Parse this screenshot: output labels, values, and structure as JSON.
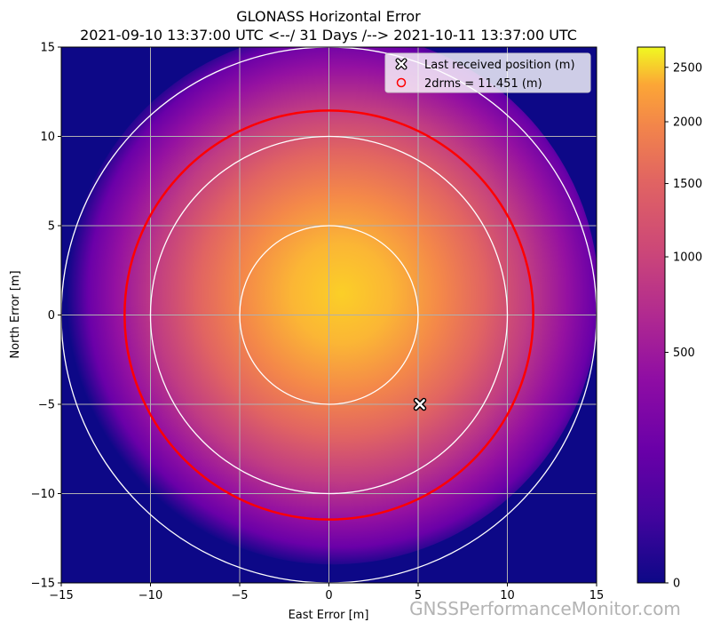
{
  "chart_data": {
    "type": "heatmap",
    "title": "GLONASS Horizontal Error",
    "subtitle": "2021-09-10 13:37:00 UTC  <--/ 31 Days /-->  2021-10-11 13:37:00 UTC",
    "xlabel": "East Error [m]",
    "ylabel": "North Error [m]",
    "xlim": [
      -15,
      15
    ],
    "ylim": [
      -15,
      15
    ],
    "x_ticks": [
      "−15",
      "−10",
      "−5",
      "0",
      "5",
      "10",
      "15"
    ],
    "y_ticks": [
      "−15",
      "−10",
      "−5",
      "0",
      "5",
      "10",
      "15"
    ],
    "grid": true,
    "density_peak": {
      "x": 0.7,
      "y": 1.2
    },
    "reference_circles_m": [
      5,
      10,
      15
    ],
    "drms_circle": {
      "radius": 11.451,
      "color": "#ff0000"
    },
    "last_position": {
      "x": 5.1,
      "y": -5.0
    },
    "legend": {
      "position": "top-right",
      "entries": [
        {
          "label": "Last received position (m)",
          "marker": "x-marker-icon"
        },
        {
          "label": "2drms = 11.451 (m)",
          "marker": "red-circle-icon"
        }
      ]
    },
    "colorbar": {
      "colormap": "plasma",
      "scale": "sqrt",
      "range": [
        0,
        2700
      ],
      "ticks": [
        "0",
        "500",
        "1000",
        "1500",
        "2000",
        "2500"
      ]
    }
  },
  "watermark": "GNSSPerformanceMonitor.com"
}
